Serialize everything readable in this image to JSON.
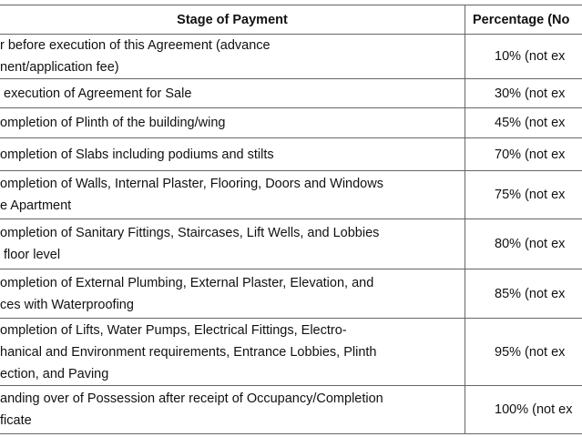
{
  "table": {
    "headers": {
      "stage": "Stage of Payment",
      "percentage": "Percentage (No"
    },
    "rows": [
      {
        "stage": [
          "r before execution of this Agreement (advance",
          "nent/application fee)"
        ],
        "percentage": "10% (not ex"
      },
      {
        "stage": [
          " execution of Agreement for Sale"
        ],
        "percentage": "30% (not ex"
      },
      {
        "stage": [
          "ompletion of Plinth of the building/wing"
        ],
        "percentage": "45% (not ex"
      },
      {
        "stage": [
          "ompletion of Slabs including podiums and stilts"
        ],
        "percentage": "70% (not ex"
      },
      {
        "stage": [
          "ompletion of Walls, Internal Plaster, Flooring, Doors and Windows",
          "e Apartment"
        ],
        "percentage": "75% (not ex"
      },
      {
        "stage": [
          "ompletion of Sanitary Fittings, Staircases, Lift Wells, and Lobbies",
          " floor level"
        ],
        "percentage": "80% (not ex"
      },
      {
        "stage": [
          "ompletion of External Plumbing, External Plaster, Elevation, and",
          "ces with Waterproofing"
        ],
        "percentage": "85% (not ex"
      },
      {
        "stage": [
          "ompletion of Lifts, Water Pumps, Electrical Fittings, Electro-",
          "hanical and Environment requirements, Entrance Lobbies, Plinth",
          "ection, and Paving"
        ],
        "percentage": "95% (not ex"
      },
      {
        "stage": [
          "anding over of Possession after receipt of Occupancy/Completion",
          "ficate"
        ],
        "percentage": "100% (not ex"
      }
    ]
  }
}
